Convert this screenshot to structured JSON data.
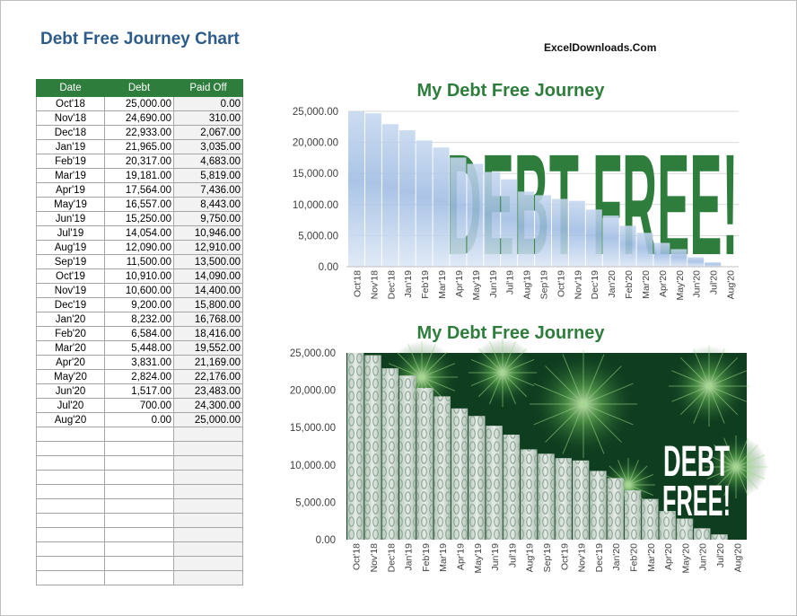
{
  "header": {
    "title": "Debt Free Journey Chart",
    "brand": "ExcelDownloads.Com"
  },
  "table": {
    "columns": [
      "Date",
      "Debt",
      "Paid Off"
    ],
    "rows": [
      [
        "Oct'18",
        "25,000.00",
        "0.00"
      ],
      [
        "Nov'18",
        "24,690.00",
        "310.00"
      ],
      [
        "Dec'18",
        "22,933.00",
        "2,067.00"
      ],
      [
        "Jan'19",
        "21,965.00",
        "3,035.00"
      ],
      [
        "Feb'19",
        "20,317.00",
        "4,683.00"
      ],
      [
        "Mar'19",
        "19,181.00",
        "5,819.00"
      ],
      [
        "Apr'19",
        "17,564.00",
        "7,436.00"
      ],
      [
        "May'19",
        "16,557.00",
        "8,443.00"
      ],
      [
        "Jun'19",
        "15,250.00",
        "9,750.00"
      ],
      [
        "Jul'19",
        "14,054.00",
        "10,946.00"
      ],
      [
        "Aug'19",
        "12,090.00",
        "12,910.00"
      ],
      [
        "Sep'19",
        "11,500.00",
        "13,500.00"
      ],
      [
        "Oct'19",
        "10,910.00",
        "14,090.00"
      ],
      [
        "Nov'19",
        "10,600.00",
        "14,400.00"
      ],
      [
        "Dec'19",
        "9,200.00",
        "15,800.00"
      ],
      [
        "Jan'20",
        "8,232.00",
        "16,768.00"
      ],
      [
        "Feb'20",
        "6,584.00",
        "18,416.00"
      ],
      [
        "Mar'20",
        "5,448.00",
        "19,552.00"
      ],
      [
        "Apr'20",
        "3,831.00",
        "21,169.00"
      ],
      [
        "May'20",
        "2,824.00",
        "22,176.00"
      ],
      [
        "Jun'20",
        "1,517.00",
        "23,483.00"
      ],
      [
        "Jul'20",
        "700.00",
        "24,300.00"
      ],
      [
        "Aug'20",
        "0.00",
        "25,000.00"
      ]
    ],
    "empty_rows": 11
  },
  "chart_data": [
    {
      "type": "bar",
      "title": "My Debt Free Journey",
      "background_text": "DEBT FREE!",
      "categories": [
        "Oct'18",
        "Nov'18",
        "Dec'18",
        "Jan'19",
        "Feb'19",
        "Mar'19",
        "Apr'19",
        "May'19",
        "Jun'19",
        "Jul'19",
        "Aug'19",
        "Sep'19",
        "Oct'19",
        "Nov'19",
        "Dec'19",
        "Jan'20",
        "Feb'20",
        "Mar'20",
        "Apr'20",
        "May'20",
        "Jun'20",
        "Jul'20",
        "Aug'20"
      ],
      "values": [
        25000,
        24690,
        22933,
        21965,
        20317,
        19181,
        17564,
        16557,
        15250,
        14054,
        12090,
        11500,
        10910,
        10600,
        9200,
        8232,
        6584,
        5448,
        3831,
        2824,
        1517,
        700,
        0
      ],
      "yticks": [
        "0.00",
        "5,000.00",
        "10,000.00",
        "15,000.00",
        "20,000.00",
        "25,000.00"
      ],
      "ylim": [
        0,
        25000
      ],
      "bar_color": "#aac4e6",
      "accent_color": "#2e7d3c",
      "grid": true
    },
    {
      "type": "bar",
      "title": "My Debt Free Journey",
      "background_text": [
        "DEBT",
        "FREE!"
      ],
      "categories": [
        "Oct'18",
        "Nov'18",
        "Dec'18",
        "Jan'19",
        "Feb'19",
        "Mar'19",
        "Apr'19",
        "May'19",
        "Jun'19",
        "Jul'19",
        "Aug'19",
        "Sep'19",
        "Oct'19",
        "Nov'19",
        "Dec'19",
        "Jan'20",
        "Feb'20",
        "Mar'20",
        "Apr'20",
        "May'20",
        "Jun'20",
        "Jul'20",
        "Aug'20"
      ],
      "values": [
        25000,
        24690,
        22933,
        21965,
        20317,
        19181,
        17564,
        16557,
        15250,
        14054,
        12090,
        11500,
        10910,
        10600,
        9200,
        8232,
        6584,
        5448,
        3831,
        2824,
        1517,
        700,
        0
      ],
      "yticks": [
        "0.00",
        "5,000.00",
        "10,000.00",
        "15,000.00",
        "20,000.00",
        "25,000.00"
      ],
      "ylim": [
        0,
        25000
      ],
      "bar_color": "#c9d6cd",
      "background_color": "#0e3d1f",
      "grid": false
    }
  ]
}
